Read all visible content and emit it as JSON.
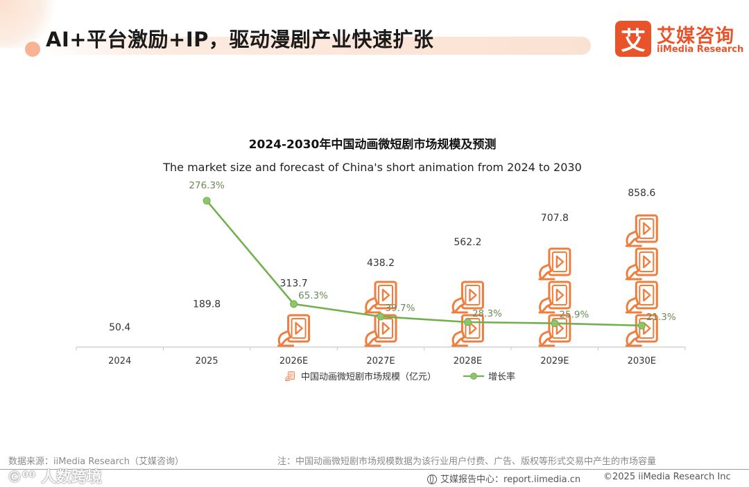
{
  "header": {
    "title": "AI+平台激励+IP，驱动漫剧产业快速扩张"
  },
  "logo": {
    "mark": "艾",
    "name_cn": "艾媒咨询",
    "name_en": "iiMedia Research"
  },
  "chart_data": {
    "type": "bar",
    "title": "2024-2030年中国动画微短剧市场规模及预测",
    "subtitle": "The market size and forecast of China's short animation from 2024 to 2030",
    "categories": [
      "2024",
      "2025",
      "2026E",
      "2027E",
      "2028E",
      "2029E",
      "2030E"
    ],
    "series": [
      {
        "name": "中国动画微短剧市场规模（亿元）",
        "kind": "pictograph-bar",
        "values": [
          50.4,
          189.8,
          313.7,
          438.2,
          562.2,
          707.8,
          858.6
        ],
        "labels": [
          "50.4",
          "189.8",
          "313.7",
          "438.2",
          "562.2",
          "707.8",
          "858.6"
        ]
      },
      {
        "name": "增长率",
        "kind": "line",
        "values": [
          null,
          276.3,
          65.3,
          39.7,
          28.3,
          25.9,
          21.3
        ],
        "labels": [
          "",
          "276.3%",
          "65.3%",
          "39.7%",
          "28.3%",
          "25.9%",
          "21.3%"
        ]
      }
    ],
    "ylim": [
      0,
      900
    ],
    "rate_ylim": [
      0,
      300
    ],
    "legend": "bottom-center",
    "colors": {
      "bar": "#ee7d3e",
      "line": "#72b04e",
      "line_marker": "#8ec56b",
      "rate_label": "#6a8a55"
    }
  },
  "footer": {
    "source": "数据来源：iiMedia Research（艾媒咨询）",
    "note": "注：中国动画微短剧市场规模数据为该行业用户付费、广告、版权等形式交易中产生的市场容量",
    "center_label": "艾媒报告中心：",
    "url": "report.iimedia.cn",
    "copyright": "©2025  iiMedia Research  Inc",
    "watermark": "©⁰⁰ 人数跨境"
  }
}
